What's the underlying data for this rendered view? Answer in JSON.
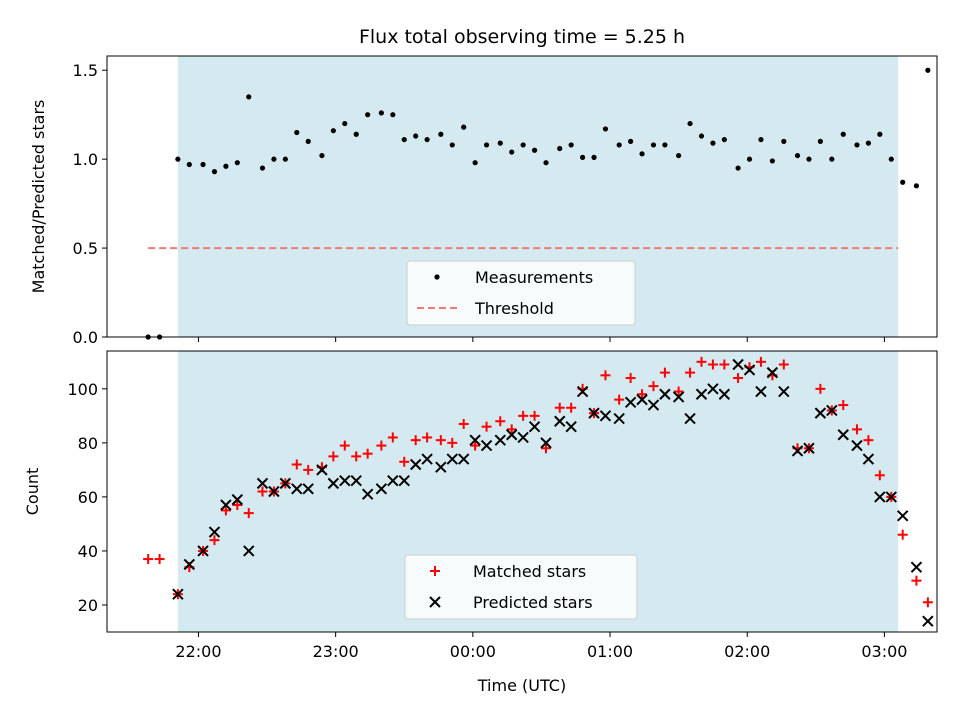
{
  "chart_data": [
    {
      "type": "scatter",
      "title": "Flux total observing time = 5.25 h",
      "ylabel": "Matched/Predicted stars",
      "xlim": [
        "21:20",
        "03:23"
      ],
      "ylim": [
        0.0,
        1.58
      ],
      "yticks": [
        0.0,
        0.5,
        1.0,
        1.5
      ],
      "ytick_labels": [
        "0.0",
        "0.5",
        "1.0",
        "1.5"
      ],
      "shaded_span": [
        "21:51",
        "03:06"
      ],
      "shade_color": "#d4eaf0",
      "threshold": {
        "name": "Threshold",
        "value": 0.5,
        "x_range": [
          "21:38",
          "03:06"
        ],
        "color": "#f07a78"
      },
      "legend": {
        "placement": "lower center",
        "entries": [
          "Measurements",
          "Threshold"
        ]
      },
      "series": [
        {
          "name": "Measurements",
          "color": "#000000",
          "points": [
            [
              "21:38",
              0.0
            ],
            [
              "21:43",
              0.0
            ],
            [
              "21:51",
              1.0
            ],
            [
              "21:56",
              0.97
            ],
            [
              "22:02",
              0.97
            ],
            [
              "22:07",
              0.93
            ],
            [
              "22:12",
              0.96
            ],
            [
              "22:17",
              0.98
            ],
            [
              "22:22",
              1.35
            ],
            [
              "22:28",
              0.95
            ],
            [
              "22:33",
              1.0
            ],
            [
              "22:38",
              1.0
            ],
            [
              "22:43",
              1.15
            ],
            [
              "22:48",
              1.1
            ],
            [
              "22:54",
              1.02
            ],
            [
              "22:59",
              1.16
            ],
            [
              "23:04",
              1.2
            ],
            [
              "23:09",
              1.14
            ],
            [
              "23:14",
              1.25
            ],
            [
              "23:20",
              1.26
            ],
            [
              "23:25",
              1.25
            ],
            [
              "23:30",
              1.11
            ],
            [
              "23:35",
              1.13
            ],
            [
              "23:40",
              1.11
            ],
            [
              "23:46",
              1.14
            ],
            [
              "23:51",
              1.08
            ],
            [
              "23:56",
              1.18
            ],
            [
              "00:01",
              0.98
            ],
            [
              "00:06",
              1.08
            ],
            [
              "00:12",
              1.09
            ],
            [
              "00:17",
              1.04
            ],
            [
              "00:22",
              1.08
            ],
            [
              "00:27",
              1.05
            ],
            [
              "00:32",
              0.98
            ],
            [
              "00:38",
              1.06
            ],
            [
              "00:43",
              1.08
            ],
            [
              "00:48",
              1.01
            ],
            [
              "00:53",
              1.01
            ],
            [
              "00:58",
              1.17
            ],
            [
              "01:04",
              1.08
            ],
            [
              "01:09",
              1.1
            ],
            [
              "01:14",
              1.03
            ],
            [
              "01:19",
              1.08
            ],
            [
              "01:24",
              1.08
            ],
            [
              "01:30",
              1.02
            ],
            [
              "01:35",
              1.2
            ],
            [
              "01:40",
              1.13
            ],
            [
              "01:45",
              1.09
            ],
            [
              "01:50",
              1.11
            ],
            [
              "01:56",
              0.95
            ],
            [
              "02:01",
              1.0
            ],
            [
              "02:06",
              1.11
            ],
            [
              "02:11",
              0.99
            ],
            [
              "02:16",
              1.1
            ],
            [
              "02:22",
              1.02
            ],
            [
              "02:27",
              1.0
            ],
            [
              "02:32",
              1.1
            ],
            [
              "02:37",
              1.0
            ],
            [
              "02:42",
              1.14
            ],
            [
              "02:48",
              1.08
            ],
            [
              "02:53",
              1.09
            ],
            [
              "02:58",
              1.14
            ],
            [
              "03:03",
              1.0
            ],
            [
              "03:08",
              0.87
            ],
            [
              "03:14",
              0.85
            ],
            [
              "03:19",
              1.5
            ]
          ]
        }
      ]
    },
    {
      "type": "scatter",
      "xlabel": "Time (UTC)",
      "ylabel": "Count",
      "xlim": [
        "21:20",
        "03:23"
      ],
      "xticks": [
        "22:00",
        "23:00",
        "00:00",
        "01:00",
        "02:00",
        "03:00"
      ],
      "ylim": [
        10,
        114
      ],
      "yticks": [
        20,
        40,
        60,
        80,
        100
      ],
      "shaded_span": [
        "21:51",
        "03:06"
      ],
      "legend": {
        "placement": "lower center",
        "entries": [
          "Matched stars",
          "Predicted stars"
        ]
      },
      "series": [
        {
          "name": "Matched stars",
          "marker": "plus",
          "color": "#ff0000",
          "points": [
            [
              "21:38",
              37
            ],
            [
              "21:43",
              37
            ],
            [
              "21:51",
              24
            ],
            [
              "21:56",
              34
            ],
            [
              "22:02",
              40
            ],
            [
              "22:07",
              44
            ],
            [
              "22:12",
              55
            ],
            [
              "22:17",
              57
            ],
            [
              "22:22",
              54
            ],
            [
              "22:28",
              62
            ],
            [
              "22:33",
              62
            ],
            [
              "22:38",
              65
            ],
            [
              "22:43",
              72
            ],
            [
              "22:48",
              70
            ],
            [
              "22:54",
              71
            ],
            [
              "22:59",
              75
            ],
            [
              "23:04",
              79
            ],
            [
              "23:09",
              75
            ],
            [
              "23:14",
              76
            ],
            [
              "23:20",
              79
            ],
            [
              "23:25",
              82
            ],
            [
              "23:30",
              73
            ],
            [
              "23:35",
              81
            ],
            [
              "23:40",
              82
            ],
            [
              "23:46",
              81
            ],
            [
              "23:51",
              80
            ],
            [
              "23:56",
              87
            ],
            [
              "00:01",
              79
            ],
            [
              "00:06",
              86
            ],
            [
              "00:12",
              88
            ],
            [
              "00:17",
              85
            ],
            [
              "00:22",
              90
            ],
            [
              "00:27",
              90
            ],
            [
              "00:32",
              78
            ],
            [
              "00:38",
              93
            ],
            [
              "00:43",
              93
            ],
            [
              "00:48",
              100
            ],
            [
              "00:53",
              91
            ],
            [
              "00:58",
              105
            ],
            [
              "01:04",
              96
            ],
            [
              "01:09",
              104
            ],
            [
              "01:14",
              98
            ],
            [
              "01:19",
              101
            ],
            [
              "01:24",
              106
            ],
            [
              "01:30",
              99
            ],
            [
              "01:35",
              106
            ],
            [
              "01:40",
              110
            ],
            [
              "01:45",
              109
            ],
            [
              "01:50",
              109
            ],
            [
              "01:56",
              104
            ],
            [
              "02:01",
              108
            ],
            [
              "02:06",
              110
            ],
            [
              "02:11",
              105
            ],
            [
              "02:16",
              109
            ],
            [
              "02:22",
              78
            ],
            [
              "02:27",
              78
            ],
            [
              "02:32",
              100
            ],
            [
              "02:37",
              92
            ],
            [
              "02:42",
              94
            ],
            [
              "02:48",
              85
            ],
            [
              "02:53",
              81
            ],
            [
              "02:58",
              68
            ],
            [
              "03:03",
              60
            ],
            [
              "03:08",
              46
            ],
            [
              "03:14",
              29
            ],
            [
              "03:19",
              21
            ]
          ]
        },
        {
          "name": "Predicted stars",
          "marker": "x",
          "color": "#000000",
          "points": [
            [
              "21:51",
              24
            ],
            [
              "21:56",
              35
            ],
            [
              "22:02",
              40
            ],
            [
              "22:07",
              47
            ],
            [
              "22:12",
              57
            ],
            [
              "22:17",
              59
            ],
            [
              "22:22",
              40
            ],
            [
              "22:28",
              65
            ],
            [
              "22:33",
              62
            ],
            [
              "22:38",
              65
            ],
            [
              "22:43",
              63
            ],
            [
              "22:48",
              63
            ],
            [
              "22:54",
              70
            ],
            [
              "22:59",
              65
            ],
            [
              "23:04",
              66
            ],
            [
              "23:09",
              66
            ],
            [
              "23:14",
              61
            ],
            [
              "23:20",
              63
            ],
            [
              "23:25",
              66
            ],
            [
              "23:30",
              66
            ],
            [
              "23:35",
              72
            ],
            [
              "23:40",
              74
            ],
            [
              "23:46",
              71
            ],
            [
              "23:51",
              74
            ],
            [
              "23:56",
              74
            ],
            [
              "00:01",
              81
            ],
            [
              "00:06",
              79
            ],
            [
              "00:12",
              81
            ],
            [
              "00:17",
              83
            ],
            [
              "00:22",
              82
            ],
            [
              "00:27",
              86
            ],
            [
              "00:32",
              80
            ],
            [
              "00:38",
              88
            ],
            [
              "00:43",
              86
            ],
            [
              "00:48",
              99
            ],
            [
              "00:53",
              91
            ],
            [
              "00:58",
              90
            ],
            [
              "01:04",
              89
            ],
            [
              "01:09",
              95
            ],
            [
              "01:14",
              96
            ],
            [
              "01:19",
              94
            ],
            [
              "01:24",
              98
            ],
            [
              "01:30",
              97
            ],
            [
              "01:35",
              89
            ],
            [
              "01:40",
              98
            ],
            [
              "01:45",
              100
            ],
            [
              "01:50",
              98
            ],
            [
              "01:56",
              109
            ],
            [
              "02:01",
              107
            ],
            [
              "02:06",
              99
            ],
            [
              "02:11",
              106
            ],
            [
              "02:16",
              99
            ],
            [
              "02:22",
              77
            ],
            [
              "02:27",
              78
            ],
            [
              "02:32",
              91
            ],
            [
              "02:37",
              92
            ],
            [
              "02:42",
              83
            ],
            [
              "02:48",
              79
            ],
            [
              "02:53",
              74
            ],
            [
              "02:58",
              60
            ],
            [
              "03:03",
              60
            ],
            [
              "03:08",
              53
            ],
            [
              "03:14",
              34
            ],
            [
              "03:19",
              14
            ]
          ]
        }
      ]
    }
  ]
}
